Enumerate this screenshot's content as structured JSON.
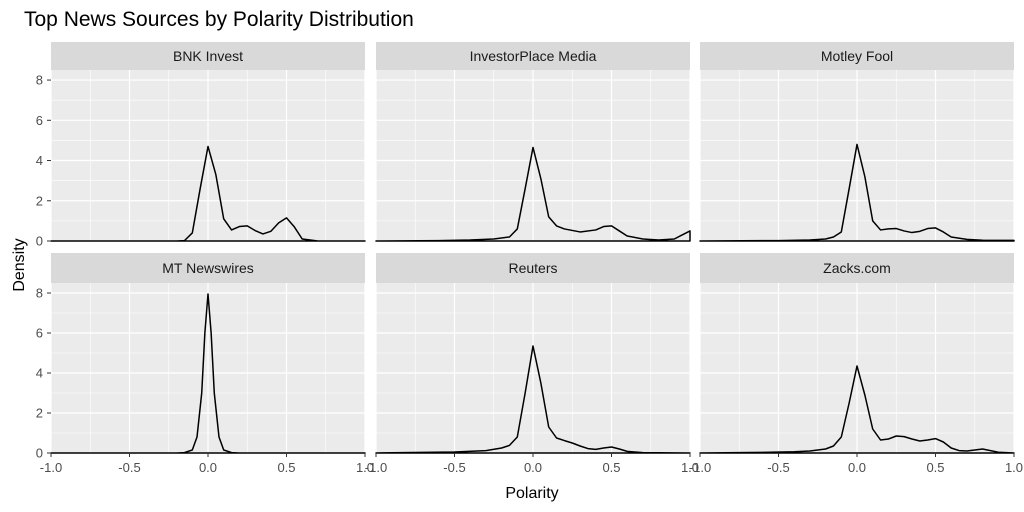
{
  "chart_data": {
    "type": "area",
    "title": "Top News Sources by Polarity Distribution",
    "xlabel": "Polarity",
    "ylabel": "Density",
    "xlim": [
      -1.0,
      1.0
    ],
    "ylim": [
      0,
      8.5
    ],
    "x_ticks": [
      -1.0,
      -0.5,
      0.0,
      0.5,
      1.0
    ],
    "x_tick_labels": [
      "-1.0",
      "-0.5",
      "0.0",
      "0.5",
      "1.0"
    ],
    "y_ticks": [
      0,
      2,
      4,
      6,
      8
    ],
    "y_tick_labels": [
      "0",
      "2",
      "4",
      "6",
      "8"
    ],
    "grid": true,
    "facet_layout": "2 rows x 3 columns",
    "colors": {
      "panel": "#ebebeb",
      "strip": "#d9d9d9",
      "grid": "#ffffff",
      "line": "#000000"
    },
    "panels": [
      {
        "name": "BNK Invest",
        "x": [
          -1.0,
          -0.5,
          -0.3,
          -0.2,
          -0.15,
          -0.1,
          -0.05,
          0.0,
          0.05,
          0.1,
          0.15,
          0.2,
          0.25,
          0.3,
          0.35,
          0.4,
          0.45,
          0.5,
          0.55,
          0.6,
          0.7,
          1.0
        ],
        "y": [
          0,
          0,
          0,
          0,
          0.02,
          0.4,
          2.6,
          4.7,
          3.3,
          1.1,
          0.55,
          0.72,
          0.75,
          0.52,
          0.35,
          0.48,
          0.9,
          1.15,
          0.7,
          0.1,
          0,
          0
        ]
      },
      {
        "name": "InvestorPlace Media",
        "x": [
          -1.0,
          -0.6,
          -0.4,
          -0.25,
          -0.15,
          -0.1,
          -0.05,
          0.0,
          0.05,
          0.1,
          0.15,
          0.2,
          0.3,
          0.4,
          0.45,
          0.5,
          0.55,
          0.6,
          0.7,
          0.8,
          0.9,
          0.95,
          1.0
        ],
        "y": [
          0,
          0.02,
          0.05,
          0.1,
          0.2,
          0.6,
          2.6,
          4.65,
          3.1,
          1.2,
          0.75,
          0.6,
          0.45,
          0.55,
          0.72,
          0.75,
          0.5,
          0.25,
          0.1,
          0.05,
          0.1,
          0.3,
          0.5
        ]
      },
      {
        "name": "Motley Fool",
        "x": [
          -1.0,
          -0.5,
          -0.3,
          -0.2,
          -0.15,
          -0.1,
          -0.05,
          0.0,
          0.05,
          0.1,
          0.15,
          0.2,
          0.25,
          0.3,
          0.35,
          0.4,
          0.45,
          0.5,
          0.55,
          0.6,
          0.7,
          0.8,
          1.0
        ],
        "y": [
          0,
          0.02,
          0.05,
          0.1,
          0.2,
          0.45,
          2.6,
          4.8,
          3.2,
          1.0,
          0.55,
          0.6,
          0.62,
          0.5,
          0.42,
          0.48,
          0.62,
          0.65,
          0.45,
          0.2,
          0.08,
          0.04,
          0.03
        ]
      },
      {
        "name": "MT Newswires",
        "x": [
          -1.0,
          -0.2,
          -0.15,
          -0.1,
          -0.07,
          -0.04,
          -0.02,
          0.0,
          0.02,
          0.04,
          0.07,
          0.1,
          0.15,
          0.2,
          1.0
        ],
        "y": [
          0,
          0,
          0.02,
          0.15,
          0.8,
          3.0,
          6.0,
          7.95,
          6.0,
          3.0,
          0.8,
          0.15,
          0.02,
          0,
          0
        ]
      },
      {
        "name": "Reuters",
        "x": [
          -1.0,
          -0.5,
          -0.3,
          -0.2,
          -0.15,
          -0.1,
          -0.05,
          0.0,
          0.05,
          0.1,
          0.15,
          0.2,
          0.25,
          0.3,
          0.35,
          0.4,
          0.45,
          0.5,
          0.55,
          0.6,
          0.7,
          1.0
        ],
        "y": [
          0,
          0.05,
          0.12,
          0.25,
          0.38,
          0.8,
          3.0,
          5.35,
          3.5,
          1.3,
          0.75,
          0.62,
          0.5,
          0.35,
          0.22,
          0.18,
          0.25,
          0.3,
          0.2,
          0.08,
          0.02,
          0
        ]
      },
      {
        "name": "Zacks.com",
        "x": [
          -1.0,
          -0.6,
          -0.4,
          -0.3,
          -0.2,
          -0.15,
          -0.1,
          -0.05,
          0.0,
          0.05,
          0.1,
          0.15,
          0.2,
          0.25,
          0.3,
          0.35,
          0.4,
          0.45,
          0.5,
          0.55,
          0.6,
          0.65,
          0.7,
          0.75,
          0.8,
          0.85,
          0.9,
          1.0
        ],
        "y": [
          0,
          0.03,
          0.06,
          0.1,
          0.2,
          0.35,
          0.8,
          2.5,
          4.35,
          2.9,
          1.2,
          0.65,
          0.7,
          0.85,
          0.82,
          0.7,
          0.6,
          0.65,
          0.72,
          0.55,
          0.25,
          0.12,
          0.1,
          0.15,
          0.2,
          0.12,
          0.04,
          0
        ]
      }
    ]
  }
}
